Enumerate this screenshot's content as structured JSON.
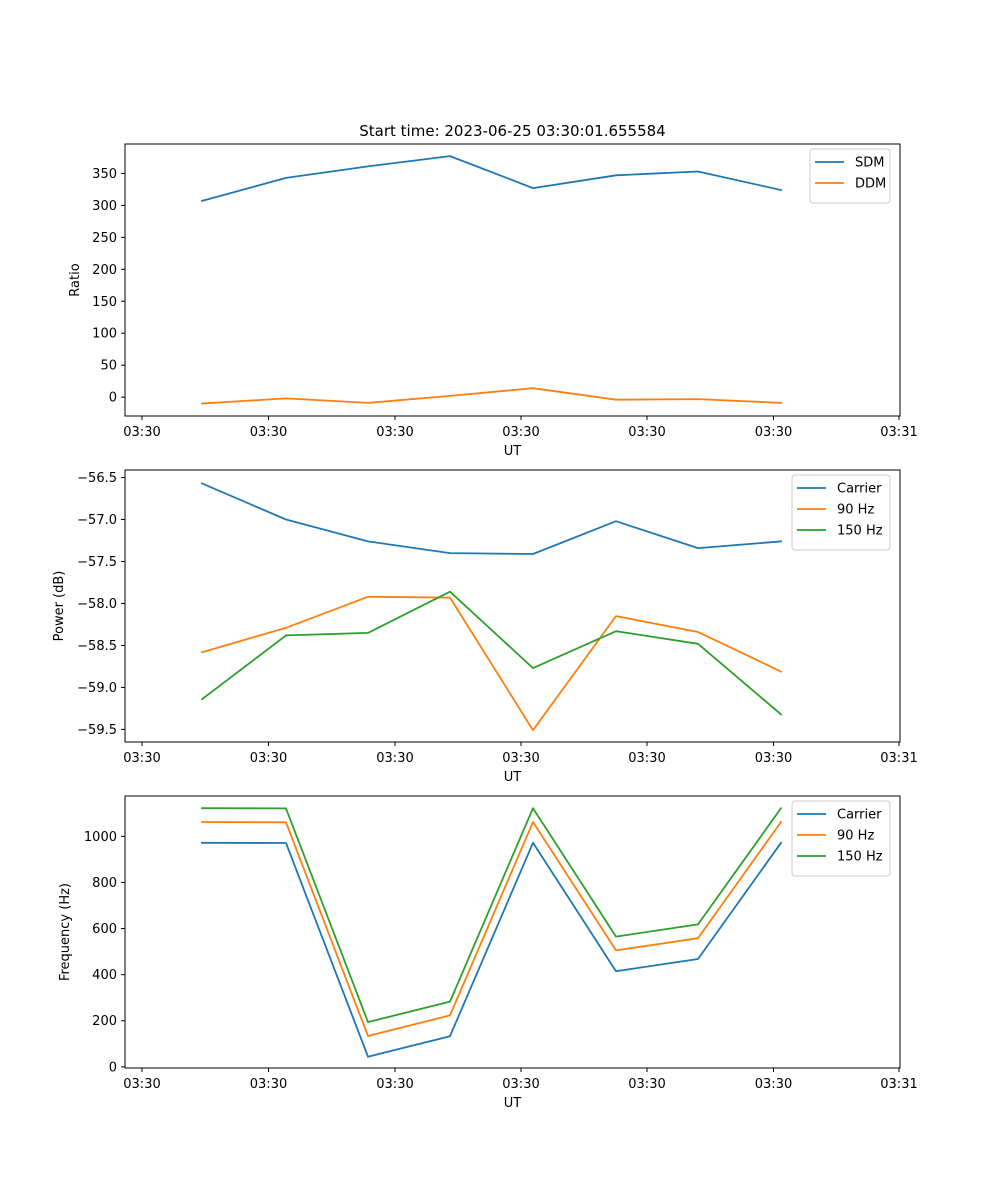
{
  "figure": {
    "title": "Start time: 2023-06-25 03:30:01.655584"
  },
  "chart_data": [
    {
      "type": "line",
      "title": "Start time: 2023-06-25 03:30:01.655584",
      "xlabel": "UT",
      "ylabel": "Ratio",
      "x_tick_labels": [
        "03:30",
        "03:30",
        "03:30",
        "03:30",
        "03:30",
        "03:30",
        "03:31"
      ],
      "y_ticks": [
        0,
        50,
        100,
        150,
        200,
        250,
        300,
        350
      ],
      "ylim": [
        -29.5,
        396
      ],
      "legend": "top-right",
      "series": [
        {
          "name": "SDM",
          "color": "#1f77b4",
          "values": [
            307,
            343,
            361,
            377,
            327,
            347,
            353,
            324
          ]
        },
        {
          "name": "DDM",
          "color": "#ff7f0e",
          "values": [
            -10,
            -2,
            -9,
            2,
            14,
            -4,
            -3,
            -9
          ]
        }
      ]
    },
    {
      "type": "line",
      "xlabel": "UT",
      "ylabel": "Power (dB)",
      "x_tick_labels": [
        "03:30",
        "03:30",
        "03:30",
        "03:30",
        "03:30",
        "03:30",
        "03:31"
      ],
      "y_ticks": [
        -59.5,
        -59.0,
        -58.5,
        -58.0,
        -57.5,
        -57.0,
        -56.5
      ],
      "y_tick_labels": [
        "−59.5",
        "−59.0",
        "−58.5",
        "−58.0",
        "−57.5",
        "−57.0",
        "−56.5"
      ],
      "ylim": [
        -59.65,
        -56.41
      ],
      "legend": "top-right",
      "series": [
        {
          "name": "Carrier",
          "color": "#1f77b4",
          "values": [
            -56.57,
            -57.0,
            -57.26,
            -57.4,
            -57.41,
            -57.02,
            -57.34,
            -57.26
          ]
        },
        {
          "name": "90 Hz",
          "color": "#ff7f0e",
          "values": [
            -58.58,
            -58.29,
            -57.92,
            -57.93,
            -59.51,
            -58.15,
            -58.34,
            -58.81
          ]
        },
        {
          "name": "150 Hz",
          "color": "#2ca02c",
          "values": [
            -59.14,
            -58.38,
            -58.35,
            -57.86,
            -58.77,
            -58.33,
            -58.48,
            -59.32
          ]
        }
      ]
    },
    {
      "type": "line",
      "xlabel": "UT",
      "ylabel": "Frequency (Hz)",
      "x_tick_labels": [
        "03:30",
        "03:30",
        "03:30",
        "03:30",
        "03:30",
        "03:30",
        "03:31"
      ],
      "y_ticks": [
        0,
        200,
        400,
        600,
        800,
        1000
      ],
      "ylim": [
        -5,
        1175
      ],
      "legend": "top-right",
      "series": [
        {
          "name": "Carrier",
          "color": "#1f77b4",
          "values": [
            972,
            971,
            44,
            133,
            972,
            415,
            468,
            972
          ]
        },
        {
          "name": "90 Hz",
          "color": "#ff7f0e",
          "values": [
            1062,
            1061,
            134,
            223,
            1062,
            505,
            558,
            1062
          ]
        },
        {
          "name": "150 Hz",
          "color": "#2ca02c",
          "values": [
            1122,
            1121,
            194,
            283,
            1122,
            565,
            618,
            1122
          ]
        }
      ]
    }
  ]
}
